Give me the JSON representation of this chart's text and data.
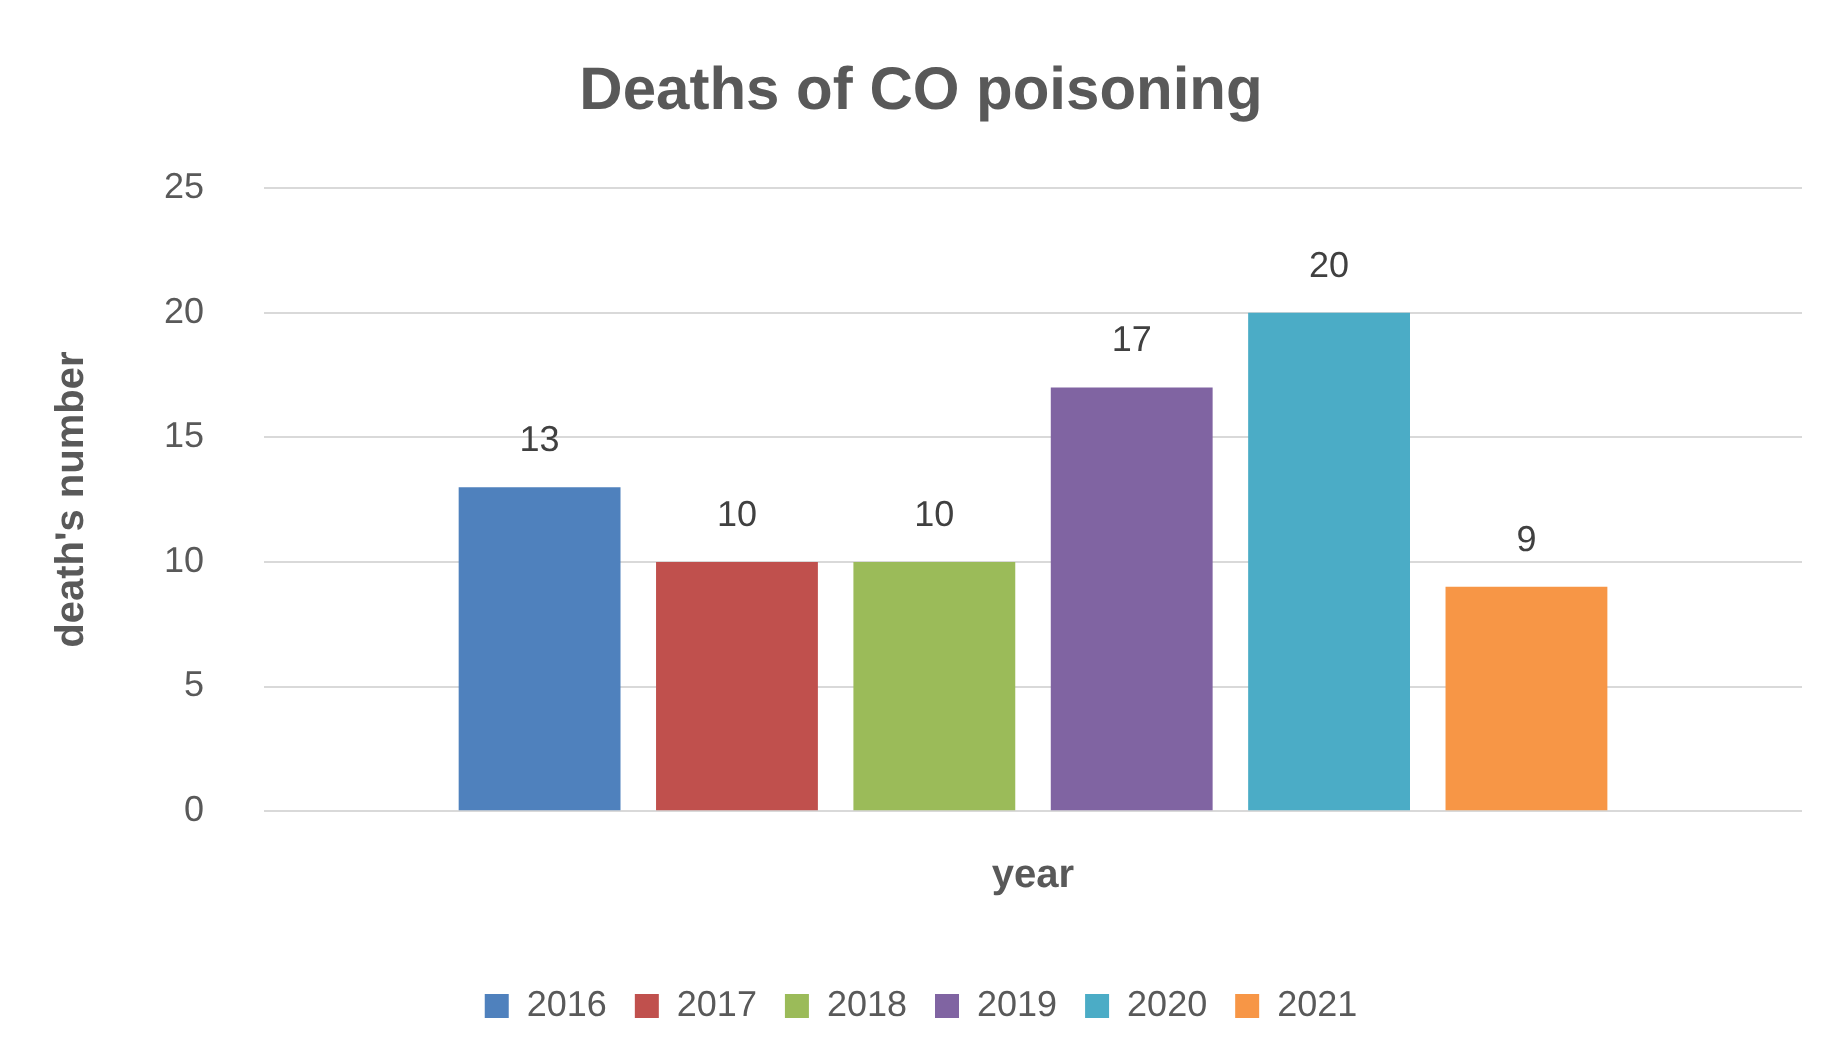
{
  "chart_data": {
    "type": "bar",
    "title": "Deaths of CO poisoning",
    "xlabel": "year",
    "ylabel": "death's number",
    "categories": [
      null
    ],
    "series": [
      {
        "name": "2016",
        "color": "#4f81bd",
        "values": [
          13
        ]
      },
      {
        "name": "2017",
        "color": "#c0504d",
        "values": [
          10
        ]
      },
      {
        "name": "2018",
        "color": "#9bbb59",
        "values": [
          10
        ]
      },
      {
        "name": "2019",
        "color": "#8064a2",
        "values": [
          17
        ]
      },
      {
        "name": "2020",
        "color": "#4bacc6",
        "values": [
          20
        ]
      },
      {
        "name": "2021",
        "color": "#f79646",
        "values": [
          9
        ]
      }
    ],
    "ylim": [
      0,
      25
    ],
    "yticks": [
      0,
      5,
      10,
      15,
      20,
      25
    ],
    "grid": "y",
    "legend": "bottom",
    "data_labels": true
  }
}
